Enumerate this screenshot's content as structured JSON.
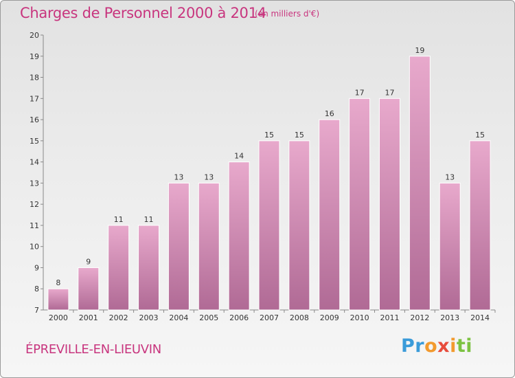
{
  "title": "Charges de Personnel 2000 à 2014",
  "subtitle": "(en milliers d'€)",
  "commune": "ÉPREVILLE-EN-LIEUVIN",
  "logo": {
    "p1": "Pr",
    "p2": "o",
    "p3": "x",
    "p4": "i",
    "p5": "ti"
  },
  "colors": {
    "accent": "#c8357e",
    "bar_top": "#e8a9cc",
    "bar_bottom": "#b06a95"
  },
  "chart_data": {
    "type": "bar",
    "title": "Charges de Personnel 2000 à 2014",
    "subtitle": "(en milliers d'€)",
    "xlabel": "",
    "ylabel": "",
    "ylim": [
      7,
      20
    ],
    "yticks": [
      7,
      8,
      9,
      10,
      11,
      12,
      13,
      14,
      15,
      16,
      17,
      18,
      19,
      20
    ],
    "categories": [
      "2000",
      "2001",
      "2002",
      "2003",
      "2004",
      "2005",
      "2006",
      "2007",
      "2008",
      "2009",
      "2010",
      "2011",
      "2012",
      "2013",
      "2014"
    ],
    "values": [
      8,
      9,
      11,
      11,
      13,
      13,
      14,
      15,
      15,
      16,
      17,
      17,
      19,
      13,
      15
    ],
    "grid": false,
    "legend": "none"
  }
}
